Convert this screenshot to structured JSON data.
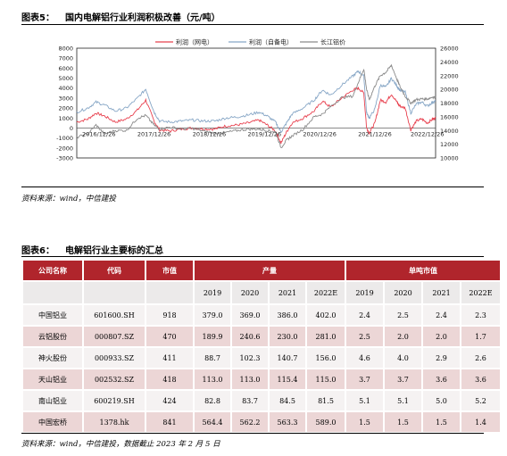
{
  "figure5": {
    "label": "图表5：",
    "title": "国内电解铝行业利润积极改善（元/吨）",
    "source": "资料来源：wind，中信建投"
  },
  "chart_data": {
    "type": "line",
    "title": "",
    "legend": [
      "利润（网电）",
      "利润（自备电）",
      "长江铝价"
    ],
    "legend_position": "top",
    "colors": [
      "#e8404e",
      "#86a6c6",
      "#8a8a8a"
    ],
    "left_axis": {
      "ticks": [
        "8000",
        "7000",
        "6000",
        "5000",
        "4000",
        "3000",
        "2000",
        "1000",
        "0",
        "-1000",
        "-2000",
        "-3000"
      ],
      "range": [
        -3000,
        8000
      ]
    },
    "right_axis": {
      "ticks": [
        "26000",
        "24000",
        "22000",
        "20000",
        "18000",
        "16000",
        "14000",
        "12000",
        "10000"
      ],
      "range": [
        10000,
        26000
      ]
    },
    "x_labels": [
      "2016/12/26",
      "2017/12/26",
      "2018/12/26",
      "2019/12/26",
      "2020/12/26",
      "2021/12/26",
      "2022/12/26"
    ],
    "x_range": [
      2016.5,
      2023.0
    ],
    "series": [
      {
        "name": "利润（网电）",
        "axis": "left",
        "x": [
          2016.5,
          2016.7,
          2016.85,
          2017.0,
          2017.2,
          2017.4,
          2017.6,
          2017.75,
          2017.9,
          2018.0,
          2018.2,
          2018.4,
          2018.6,
          2018.8,
          2019.0,
          2019.2,
          2019.4,
          2019.6,
          2019.8,
          2019.95,
          2020.1,
          2020.2,
          2020.3,
          2020.4,
          2020.6,
          2020.8,
          2020.95,
          2021.1,
          2021.3,
          2021.5,
          2021.6,
          2021.7,
          2021.75,
          2021.8,
          2021.9,
          2022.0,
          2022.1,
          2022.2,
          2022.3,
          2022.35,
          2022.45,
          2022.55,
          2022.65,
          2022.75,
          2022.85,
          2022.95,
          2023.0
        ],
        "y": [
          600,
          900,
          1500,
          1200,
          600,
          900,
          1800,
          2800,
          700,
          -200,
          -300,
          -100,
          0,
          -100,
          -100,
          200,
          300,
          500,
          800,
          300,
          -300,
          -1500,
          -400,
          500,
          1000,
          1700,
          2700,
          2100,
          3000,
          3800,
          4000,
          3500,
          0,
          -500,
          500,
          2800,
          2600,
          3400,
          2600,
          2200,
          2000,
          -200,
          700,
          900,
          500,
          900,
          1000
        ]
      },
      {
        "name": "利润（自备电）",
        "axis": "left",
        "x": [
          2016.5,
          2016.7,
          2016.85,
          2017.0,
          2017.2,
          2017.4,
          2017.6,
          2017.75,
          2017.9,
          2018.0,
          2018.2,
          2018.4,
          2018.6,
          2018.8,
          2019.0,
          2019.2,
          2019.4,
          2019.6,
          2019.8,
          2019.95,
          2020.1,
          2020.2,
          2020.3,
          2020.4,
          2020.6,
          2020.8,
          2020.95,
          2021.1,
          2021.3,
          2021.5,
          2021.6,
          2021.7,
          2021.75,
          2021.8,
          2021.9,
          2022.0,
          2022.1,
          2022.2,
          2022.3,
          2022.35,
          2022.45,
          2022.55,
          2022.65,
          2022.75,
          2022.85,
          2022.95,
          2023.0
        ],
        "y": [
          1600,
          2000,
          2600,
          2300,
          1700,
          2000,
          3000,
          3900,
          1600,
          700,
          600,
          700,
          800,
          700,
          700,
          1000,
          1100,
          1300,
          1600,
          1200,
          600,
          -400,
          500,
          1400,
          2000,
          2800,
          3800,
          3300,
          4300,
          5200,
          5700,
          5200,
          1500,
          1000,
          1900,
          4300,
          4100,
          5000,
          4200,
          3800,
          3600,
          1500,
          2400,
          2600,
          2200,
          2600,
          2700
        ]
      },
      {
        "name": "长江铝价",
        "axis": "right",
        "x": [
          2016.5,
          2016.7,
          2016.85,
          2017.0,
          2017.2,
          2017.4,
          2017.6,
          2017.75,
          2017.9,
          2018.0,
          2018.2,
          2018.4,
          2018.6,
          2018.8,
          2019.0,
          2019.2,
          2019.4,
          2019.6,
          2019.8,
          2019.95,
          2020.1,
          2020.2,
          2020.3,
          2020.4,
          2020.6,
          2020.8,
          2020.95,
          2021.1,
          2021.3,
          2021.5,
          2021.6,
          2021.7,
          2021.75,
          2021.8,
          2021.9,
          2022.0,
          2022.1,
          2022.2,
          2022.3,
          2022.35,
          2022.45,
          2022.55,
          2022.65,
          2022.75,
          2022.85,
          2022.95,
          2023.0
        ],
        "y": [
          13000,
          13500,
          14800,
          13500,
          14000,
          14000,
          15800,
          16200,
          14800,
          14200,
          14500,
          14200,
          14300,
          13900,
          13600,
          13700,
          14000,
          14200,
          14200,
          14000,
          13800,
          11500,
          12600,
          13200,
          14200,
          16000,
          16400,
          17500,
          18800,
          19000,
          21000,
          23000,
          20000,
          18500,
          20500,
          22000,
          22500,
          23500,
          21500,
          20500,
          19000,
          18000,
          18500,
          18600,
          18600,
          18900,
          18800
        ]
      }
    ]
  },
  "figure6": {
    "label": "图表6：",
    "title": "电解铝行业主要标的汇总",
    "headers": {
      "company": "公司名称",
      "code": "代码",
      "market_cap": "市值",
      "output": "产量",
      "profit_per_ton": "单吨市值"
    },
    "years": [
      "2019",
      "2020",
      "2021",
      "2022E"
    ],
    "rows": [
      {
        "name": "中国铝业",
        "code": "601600.SH",
        "cap": "918",
        "output": [
          "379.0",
          "369.0",
          "386.0",
          "402.0"
        ],
        "per_ton": [
          "2.4",
          "2.5",
          "2.4",
          "2.3"
        ]
      },
      {
        "name": "云铝股份",
        "code": "000807.SZ",
        "cap": "470",
        "output": [
          "189.9",
          "240.6",
          "230.0",
          "281.0"
        ],
        "per_ton": [
          "2.5",
          "2.0",
          "2.0",
          "1.7"
        ]
      },
      {
        "name": "神火股份",
        "code": "000933.SZ",
        "cap": "411",
        "output": [
          "88.7",
          "102.3",
          "140.7",
          "156.0"
        ],
        "per_ton": [
          "4.6",
          "4.0",
          "2.9",
          "2.6"
        ]
      },
      {
        "name": "天山铝业",
        "code": "002532.SZ",
        "cap": "418",
        "output": [
          "113.0",
          "113.0",
          "115.4",
          "115.0"
        ],
        "per_ton": [
          "3.7",
          "3.7",
          "3.6",
          "3.6"
        ]
      },
      {
        "name": "南山铝业",
        "code": "600219.SH",
        "cap": "424",
        "output": [
          "82.8",
          "83.7",
          "84.5",
          "81.5"
        ],
        "per_ton": [
          "5.1",
          "5.1",
          "5.0",
          "5.2"
        ]
      },
      {
        "name": "中国宏桥",
        "code": "1378.hk",
        "cap": "841",
        "output": [
          "564.4",
          "562.2",
          "563.3",
          "589.0"
        ],
        "per_ton": [
          "1.5",
          "1.5",
          "1.5",
          "1.4"
        ]
      }
    ],
    "source": "资料来源：wind，中信建投，数据截止 2023 年 2 月 5 日"
  }
}
